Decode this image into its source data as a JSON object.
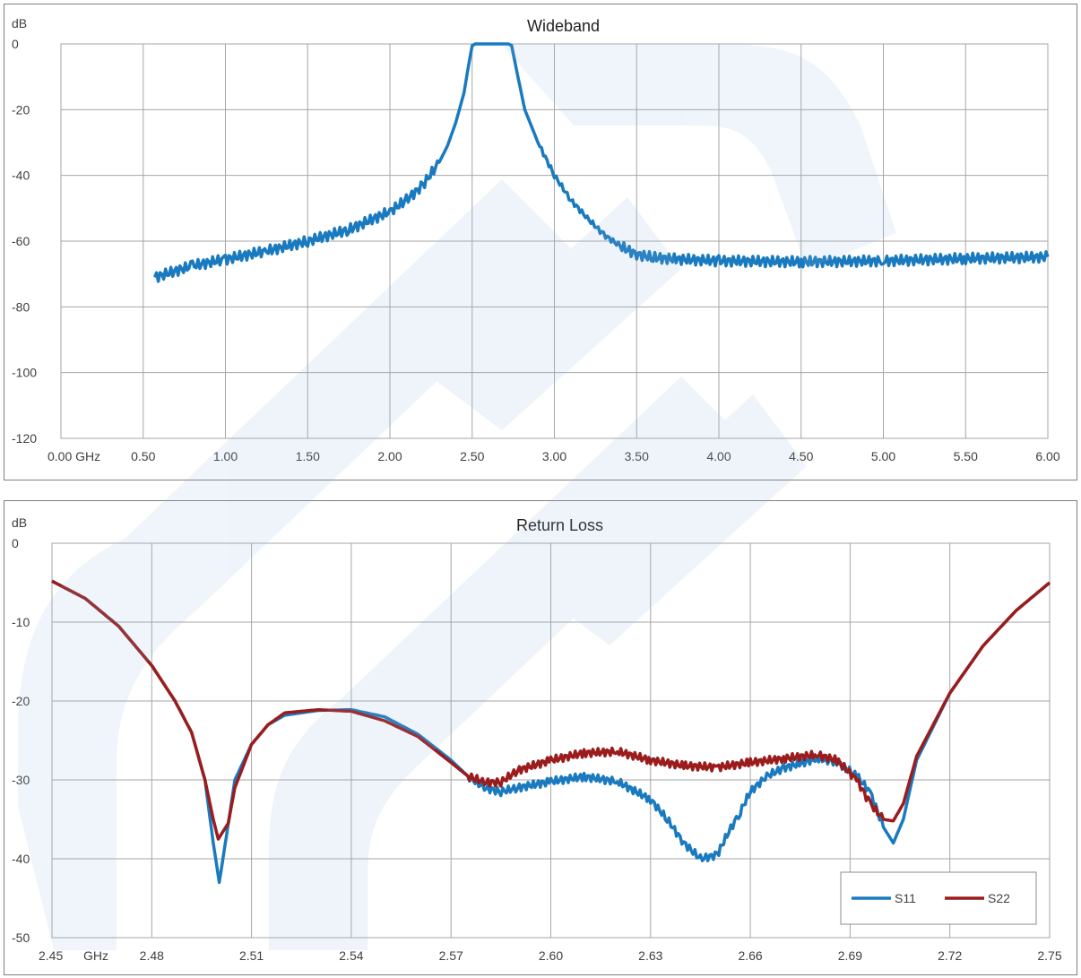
{
  "chart_data": [
    {
      "type": "line",
      "title": "Wideband",
      "ylabel": "dB",
      "xunit": "GHz",
      "xlim": [
        0.0,
        6.0
      ],
      "ylim": [
        -120,
        0
      ],
      "grid": true,
      "x_tick_labels": [
        "0.00 GHz",
        "0.50",
        "1.00",
        "1.50",
        "2.00",
        "2.50",
        "3.00",
        "3.50",
        "4.00",
        "4.50",
        "5.00",
        "5.50",
        "6.00"
      ],
      "x_ticks": [
        0,
        0.5,
        1.0,
        1.5,
        2.0,
        2.5,
        3.0,
        3.5,
        4.0,
        4.5,
        5.0,
        5.5,
        6.0
      ],
      "y_ticks": [
        0,
        -20,
        -40,
        -60,
        -80,
        -100,
        -120
      ],
      "y_tick_labels": [
        "0",
        "-20",
        "-40",
        "-60",
        "-80",
        "-100",
        "-120"
      ],
      "series": [
        {
          "color": "#1a7abf",
          "points": [
            [
              0.57,
              -71
            ],
            [
              0.8,
              -67.5
            ],
            [
              1.0,
              -65.5
            ],
            [
              1.25,
              -63
            ],
            [
              1.5,
              -60
            ],
            [
              1.75,
              -56.5
            ],
            [
              2.0,
              -51
            ],
            [
              2.1,
              -47.5
            ],
            [
              2.2,
              -43
            ],
            [
              2.3,
              -36
            ],
            [
              2.35,
              -31
            ],
            [
              2.4,
              -24
            ],
            [
              2.45,
              -15
            ],
            [
              2.48,
              -6
            ],
            [
              2.5,
              -0.5
            ],
            [
              2.52,
              0
            ],
            [
              2.72,
              0
            ],
            [
              2.74,
              -0.5
            ],
            [
              2.77,
              -8
            ],
            [
              2.82,
              -20
            ],
            [
              2.9,
              -30
            ],
            [
              3.0,
              -40
            ],
            [
              3.1,
              -47.5
            ],
            [
              3.2,
              -53
            ],
            [
              3.3,
              -58
            ],
            [
              3.4,
              -61.5
            ],
            [
              3.5,
              -64
            ],
            [
              3.6,
              -65
            ],
            [
              3.75,
              -65.5
            ],
            [
              4.0,
              -66
            ],
            [
              4.5,
              -66.3
            ],
            [
              5.0,
              -66
            ],
            [
              5.5,
              -65.3
            ],
            [
              6.0,
              -64.8
            ]
          ]
        }
      ]
    },
    {
      "type": "line",
      "title": "Return Loss",
      "ylabel": "dB",
      "xunit": "GHz",
      "xlim": [
        2.45,
        2.75
      ],
      "ylim": [
        -50,
        0
      ],
      "grid": true,
      "x_ticks": [
        2.45,
        2.48,
        2.51,
        2.54,
        2.57,
        2.6,
        2.63,
        2.66,
        2.69,
        2.72,
        2.75
      ],
      "x_tick_labels": [
        "2.45",
        "2.48",
        "2.51",
        "2.54",
        "2.57",
        "2.60",
        "2.63",
        "2.66",
        "2.69",
        "2.72",
        "2.75"
      ],
      "x_unit_label": "GHz",
      "y_ticks": [
        0,
        -10,
        -20,
        -30,
        -40,
        -50
      ],
      "y_tick_labels": [
        "0",
        "-10",
        "-20",
        "-30",
        "-40",
        "-50"
      ],
      "legend_position": "bottom-right",
      "series": [
        {
          "name": "S11",
          "color": "#1a7abf",
          "points": [
            [
              2.45,
              -4.8
            ],
            [
              2.46,
              -7
            ],
            [
              2.47,
              -10.5
            ],
            [
              2.48,
              -15.5
            ],
            [
              2.487,
              -20
            ],
            [
              2.492,
              -24
            ],
            [
              2.496,
              -30
            ],
            [
              2.4985,
              -38
            ],
            [
              2.5003,
              -43
            ],
            [
              2.5025,
              -37
            ],
            [
              2.505,
              -30
            ],
            [
              2.51,
              -25.5
            ],
            [
              2.515,
              -23
            ],
            [
              2.52,
              -21.8
            ],
            [
              2.53,
              -21.2
            ],
            [
              2.54,
              -21.1
            ],
            [
              2.55,
              -22
            ],
            [
              2.56,
              -24.2
            ],
            [
              2.57,
              -27.5
            ],
            [
              2.575,
              -29.5
            ],
            [
              2.58,
              -31
            ],
            [
              2.585,
              -31.5
            ],
            [
              2.59,
              -31
            ],
            [
              2.6,
              -30.2
            ],
            [
              2.61,
              -29.6
            ],
            [
              2.62,
              -30.2
            ],
            [
              2.63,
              -32.5
            ],
            [
              2.635,
              -35
            ],
            [
              2.64,
              -38
            ],
            [
              2.645,
              -40
            ],
            [
              2.65,
              -39.5
            ],
            [
              2.653,
              -37
            ],
            [
              2.657,
              -34
            ],
            [
              2.66,
              -31.5
            ],
            [
              2.665,
              -29.5
            ],
            [
              2.67,
              -28.5
            ],
            [
              2.68,
              -27.3
            ],
            [
              2.686,
              -27.7
            ],
            [
              2.692,
              -29.5
            ],
            [
              2.696,
              -31.5
            ],
            [
              2.7,
              -36
            ],
            [
              2.703,
              -38
            ],
            [
              2.706,
              -35
            ],
            [
              2.71,
              -27.5
            ],
            [
              2.72,
              -19
            ],
            [
              2.73,
              -13
            ],
            [
              2.74,
              -8.5
            ],
            [
              2.75,
              -5
            ]
          ]
        },
        {
          "name": "S22",
          "color": "#9b1c1c",
          "points": [
            [
              2.45,
              -4.8
            ],
            [
              2.46,
              -7
            ],
            [
              2.47,
              -10.5
            ],
            [
              2.48,
              -15.5
            ],
            [
              2.487,
              -20
            ],
            [
              2.492,
              -24
            ],
            [
              2.496,
              -30
            ],
            [
              2.4985,
              -35
            ],
            [
              2.5,
              -37.5
            ],
            [
              2.503,
              -35.5
            ],
            [
              2.505,
              -31
            ],
            [
              2.51,
              -25.5
            ],
            [
              2.515,
              -23
            ],
            [
              2.52,
              -21.5
            ],
            [
              2.53,
              -21.1
            ],
            [
              2.54,
              -21.3
            ],
            [
              2.55,
              -22.5
            ],
            [
              2.56,
              -24.5
            ],
            [
              2.57,
              -27.8
            ],
            [
              2.575,
              -29.5
            ],
            [
              2.58,
              -30.3
            ],
            [
              2.585,
              -30.3
            ],
            [
              2.59,
              -28.8
            ],
            [
              2.6,
              -27.5
            ],
            [
              2.61,
              -26.6
            ],
            [
              2.62,
              -26.4
            ],
            [
              2.63,
              -27.5
            ],
            [
              2.64,
              -28.2
            ],
            [
              2.65,
              -28.4
            ],
            [
              2.66,
              -27.8
            ],
            [
              2.67,
              -27.3
            ],
            [
              2.68,
              -26.8
            ],
            [
              2.686,
              -27.5
            ],
            [
              2.692,
              -30
            ],
            [
              2.696,
              -33
            ],
            [
              2.7,
              -35
            ],
            [
              2.703,
              -35.2
            ],
            [
              2.706,
              -33
            ],
            [
              2.71,
              -27
            ],
            [
              2.72,
              -19
            ],
            [
              2.73,
              -13
            ],
            [
              2.74,
              -8.5
            ],
            [
              2.75,
              -5
            ]
          ]
        }
      ]
    }
  ]
}
